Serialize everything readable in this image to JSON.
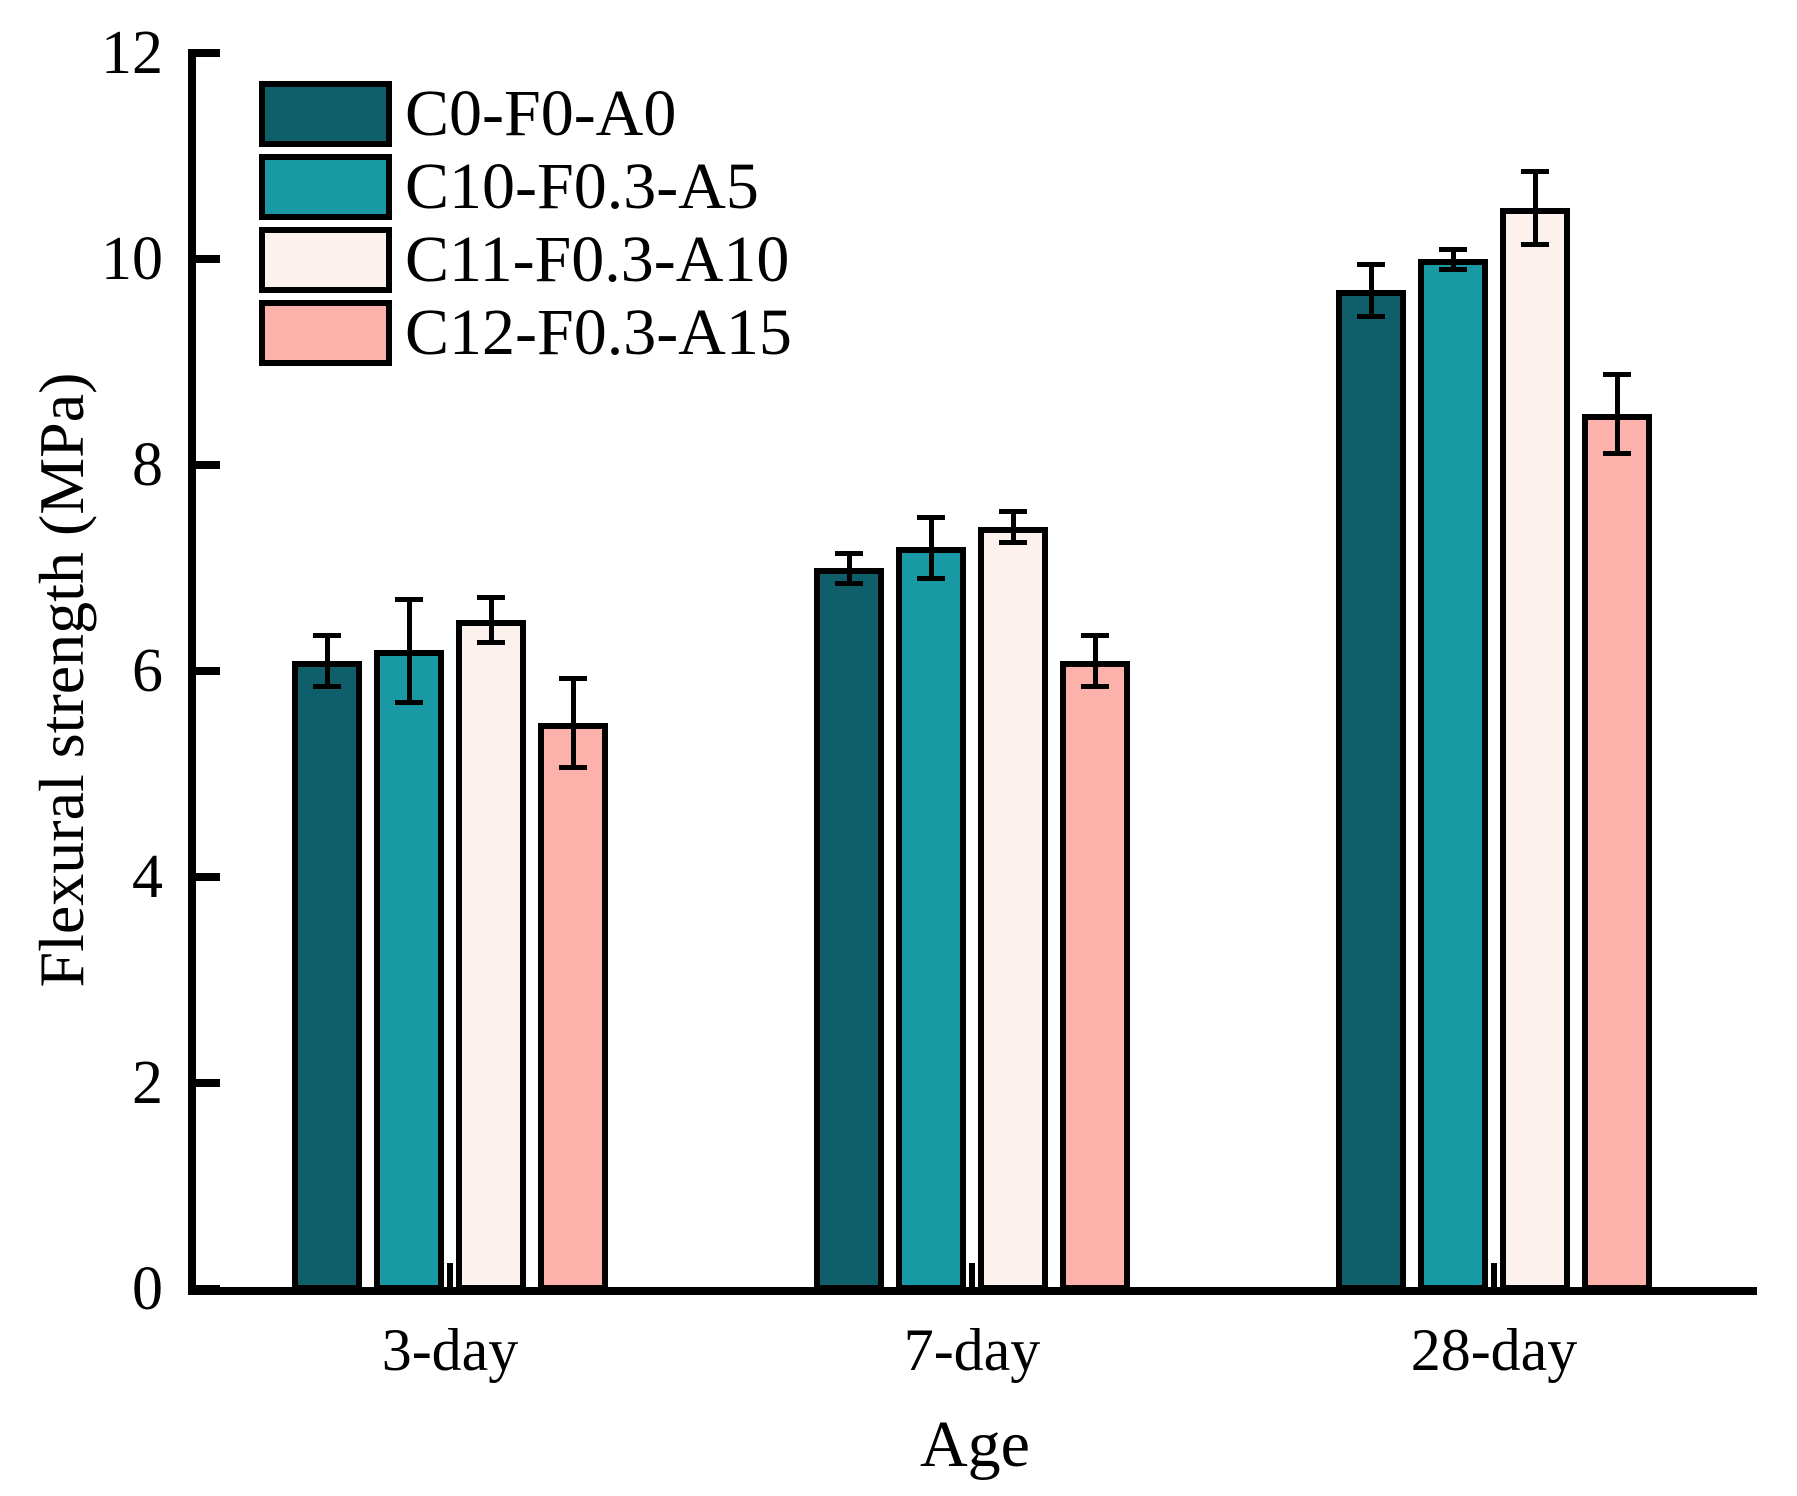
{
  "figure": {
    "background_color": "#FFFFFF",
    "axis_color": "#000000",
    "text_color": "#000000"
  },
  "chart_data": {
    "type": "bar",
    "title": "",
    "xlabel": "Age",
    "ylabel": "Flexural strength (MPa)",
    "categories": [
      "3-day",
      "7-day",
      "28-day"
    ],
    "series": [
      {
        "name": "C0-F0-A0",
        "color": "#0E5F69",
        "values": [
          6.1,
          7.0,
          9.7
        ],
        "errors": [
          0.25,
          0.15,
          0.25
        ]
      },
      {
        "name": "C10-F0.3-A5",
        "color": "#1999A4",
        "values": [
          6.2,
          7.2,
          10.0
        ],
        "errors": [
          0.5,
          0.3,
          0.1
        ]
      },
      {
        "name": "C11-F0.3-A10",
        "color": "#FDF1EE",
        "values": [
          6.5,
          7.4,
          10.5
        ],
        "errors": [
          0.22,
          0.15,
          0.35
        ]
      },
      {
        "name": "C12-F0.3-A15",
        "color": "#FCB2AA",
        "values": [
          5.5,
          6.1,
          8.5
        ],
        "errors": [
          0.43,
          0.25,
          0.38
        ]
      }
    ],
    "ylim": [
      0,
      12
    ],
    "yticks": [
      0,
      2,
      4,
      6,
      8,
      10,
      12
    ],
    "grid": false,
    "error_bars": true,
    "legend_position": "upper-left",
    "bar_edge_color": "#000000",
    "error_bar_color": "#000000"
  }
}
